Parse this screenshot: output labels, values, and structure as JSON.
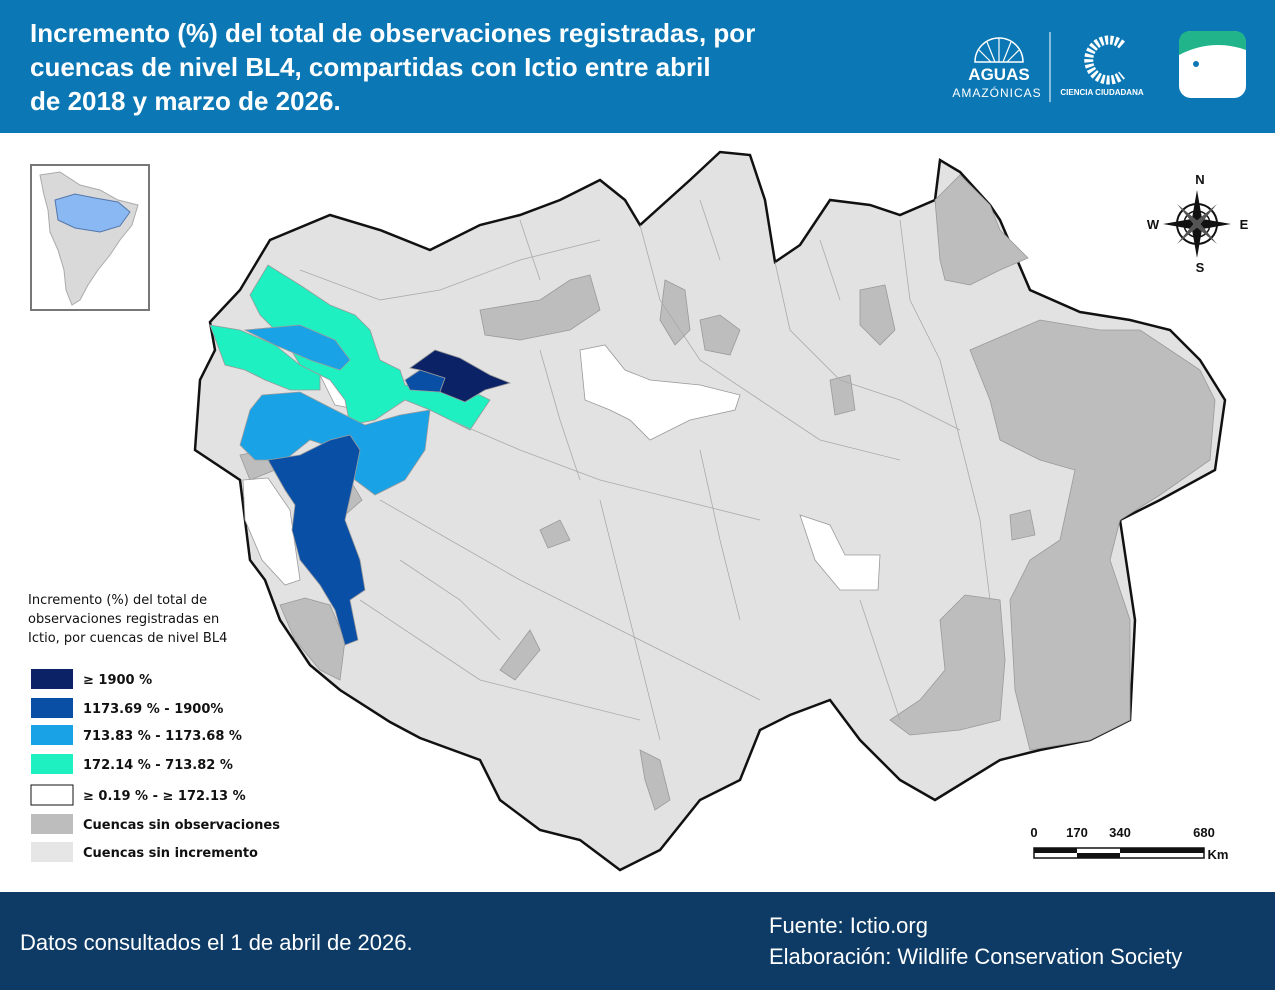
{
  "header": {
    "title_lines": [
      "Incremento (%) del total de observaciones registradas, por",
      "cuencas de nivel BL4, compartidas con Ictio entre abril",
      "de 2018 y marzo de 2026."
    ],
    "logos": {
      "aguas": "AGUAS",
      "amazonicas": "AMAZÓNICAS",
      "ciencia": "CIENCIA CIUDADANA"
    }
  },
  "compass": {
    "n": "N",
    "e": "E",
    "s": "S",
    "w": "W"
  },
  "legend": {
    "title_lines": [
      "Incremento (%) del total de",
      "observaciones registradas en",
      "Ictio, por cuencas de nivel BL4"
    ],
    "items": [
      {
        "label": "≥ 1900 %",
        "color": "#0b2366"
      },
      {
        "label": "1173.69 % - 1900%",
        "color": "#0a4fa6"
      },
      {
        "label": "713.83 % - 1173.68 %",
        "color": "#19a3e6"
      },
      {
        "label": "172.14 % - 713.82 %",
        "color": "#1ef0c2"
      },
      {
        "label": "≥ 0.19 % - ≥ 172.13 %",
        "color": "#ffffff"
      },
      {
        "label": "Cuencas sin observaciones",
        "color": "#bdbdbd"
      },
      {
        "label": "Cuencas sin incremento",
        "color": "#e6e6e6"
      }
    ]
  },
  "scale": {
    "ticks": [
      "0",
      "170",
      "340",
      "680"
    ],
    "unit": "Km"
  },
  "footer": {
    "consulted": "Datos consultados el 1 de abril de 2026.",
    "source": "Fuente: Ictio.org",
    "made_by": "Elaboración: Wildlife Conservation Society"
  }
}
